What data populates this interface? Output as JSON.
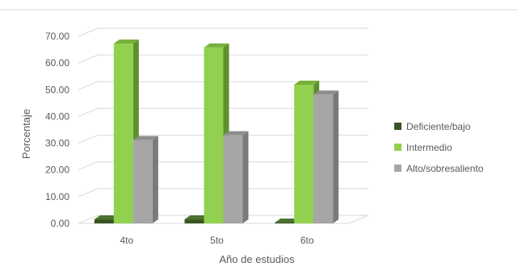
{
  "chart_data": {
    "type": "bar",
    "title": "",
    "xlabel": "Año de estudios",
    "ylabel": "Porcentaje",
    "ylim": [
      0,
      70
    ],
    "yticks": [
      0,
      10,
      20,
      30,
      40,
      50,
      60,
      70
    ],
    "ytick_labels": [
      "0.00",
      "10.00",
      "20.00",
      "30.00",
      "40.00",
      "50.00",
      "60.00",
      "70.00"
    ],
    "grid": true,
    "legend_position": "right",
    "style": "3d-clustered-column",
    "categories": [
      "4to",
      "5to",
      "6to"
    ],
    "series": [
      {
        "name": "Deficiente/bajo",
        "values": [
          1.5,
          1.5,
          0.3
        ],
        "color": "#375623",
        "side_color": "#2a4219",
        "top_color": "#4b7330"
      },
      {
        "name": "Intermedio",
        "values": [
          67.3,
          65.8,
          51.9
        ],
        "color": "#92d050",
        "side_color": "#5f8f2e",
        "top_color": "#77b03c"
      },
      {
        "name": "Alto/sobresaliento",
        "values": [
          31.2,
          33.0,
          48.2
        ],
        "color": "#a6a6a6",
        "side_color": "#7a7a7a",
        "top_color": "#8e8e8e"
      }
    ]
  }
}
